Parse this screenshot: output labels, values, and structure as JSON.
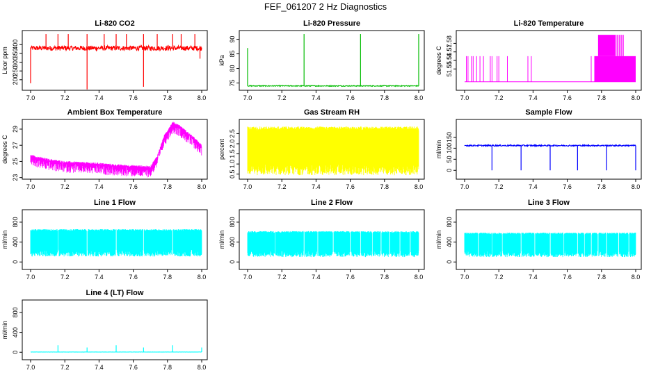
{
  "figure": {
    "title": "FEF_061207  2 Hz Diagnostics"
  },
  "chart_data": [
    {
      "type": "line",
      "title": "Li-820 CO2",
      "xlabel": "",
      "ylabel": "Licor ppm",
      "xlim": [
        7.0,
        8.0
      ],
      "ylim": [
        140,
        480
      ],
      "xticks": [
        "7.0",
        "7.2",
        "7.4",
        "7.6",
        "7.8",
        "8.0"
      ],
      "yticks": [
        "200",
        "250",
        "300",
        "350",
        "400"
      ],
      "color": "#ff0000",
      "series": [
        {
          "baseline": 380,
          "noise": 14,
          "events": [
            [
              7.0,
              180
            ],
            [
              7.09,
              460
            ],
            [
              7.16,
              460
            ],
            [
              7.22,
              460
            ],
            [
              7.33,
              145
            ],
            [
              7.33,
              460
            ],
            [
              7.43,
              460
            ],
            [
              7.5,
              460
            ],
            [
              7.56,
              460
            ],
            [
              7.66,
              160
            ],
            [
              7.66,
              460
            ],
            [
              7.74,
              460
            ],
            [
              7.83,
              460
            ],
            [
              7.88,
              460
            ],
            [
              7.96,
              460
            ],
            [
              7.99,
              320
            ]
          ]
        }
      ]
    },
    {
      "type": "line",
      "title": "Li-820 Pressure",
      "xlabel": "",
      "ylabel": "kPa",
      "xlim": [
        7.0,
        8.0
      ],
      "ylim": [
        72.5,
        93
      ],
      "xticks": [
        "7.0",
        "7.2",
        "7.4",
        "7.6",
        "7.8",
        "8.0"
      ],
      "yticks": [
        "75",
        "80",
        "85",
        "90"
      ],
      "color": "#00bb00",
      "series": [
        {
          "baseline": 74.0,
          "noise": 0.15,
          "events": [
            [
              7.0,
              87
            ],
            [
              7.33,
              91.8
            ],
            [
              7.66,
              91.8
            ],
            [
              8.0,
              91.8
            ]
          ]
        }
      ]
    },
    {
      "type": "line",
      "title": "Li-820 Temperature",
      "xlabel": "",
      "ylabel": "degrees C",
      "xlim": [
        7.0,
        8.0
      ],
      "ylim": [
        51.525,
        51.595
      ],
      "xticks": [
        "7.0",
        "7.2",
        "7.4",
        "7.6",
        "7.8",
        "8.0"
      ],
      "yticks": [
        "51.55",
        "51.56",
        "51.57",
        "51.58"
      ],
      "color": "#ff00ff",
      "series": [
        {
          "low": 51.535,
          "mid": 51.565,
          "high": 51.59,
          "jumps": [
            7.01,
            7.02,
            7.04,
            7.05,
            7.07,
            7.09,
            7.11,
            7.15,
            7.16,
            7.19,
            7.2,
            7.25,
            7.37,
            7.39,
            7.74,
            7.76
          ],
          "mid_band": [
            7.76,
            8.0
          ],
          "high_band": [
            7.78,
            7.88
          ]
        }
      ]
    },
    {
      "type": "line",
      "title": "Ambient Box Temperature",
      "xlabel": "",
      "ylabel": "degrees C",
      "xlim": [
        7.0,
        8.0
      ],
      "ylim": [
        22.8,
        30.2
      ],
      "xticks": [
        "7.0",
        "7.2",
        "7.4",
        "7.6",
        "7.8",
        "8.0"
      ],
      "yticks": [
        "23",
        "25",
        "27",
        "29"
      ],
      "color": "#ff00ff",
      "series": [
        {
          "points": [
            [
              7.0,
              25.6
            ],
            [
              7.1,
              25.1
            ],
            [
              7.2,
              24.8
            ],
            [
              7.3,
              24.7
            ],
            [
              7.4,
              24.6
            ],
            [
              7.5,
              24.4
            ],
            [
              7.6,
              24.3
            ],
            [
              7.7,
              24.2
            ],
            [
              7.74,
              25.5
            ],
            [
              7.78,
              28.0
            ],
            [
              7.83,
              29.7
            ],
            [
              7.87,
              29.3
            ],
            [
              7.92,
              28.4
            ],
            [
              7.96,
              27.7
            ],
            [
              8.0,
              26.8
            ]
          ],
          "spread": 1.2
        }
      ]
    },
    {
      "type": "line",
      "title": "Gas Stream RH",
      "xlabel": "",
      "ylabel": "percent",
      "xlim": [
        7.0,
        8.0
      ],
      "ylim": [
        0.25,
        3.2
      ],
      "xticks": [
        "7.0",
        "7.2",
        "7.4",
        "7.6",
        "7.8",
        "8.0"
      ],
      "yticks": [
        "0.5",
        "1.0",
        "1.5",
        "2.0",
        "2.5"
      ],
      "color": "#ffff00",
      "series": [
        {
          "upper": 2.85,
          "lower": 0.45
        }
      ]
    },
    {
      "type": "line",
      "title": "Sample Flow",
      "xlabel": "",
      "ylabel": "ml/min",
      "xlim": [
        7.0,
        8.0
      ],
      "ylim": [
        -40,
        230
      ],
      "xticks": [
        "7.0",
        "7.2",
        "7.4",
        "7.6",
        "7.8",
        "8.0"
      ],
      "yticks": [
        "0",
        "50",
        "100",
        "150"
      ],
      "color": "#0000ff",
      "series": [
        {
          "baseline": 112,
          "noise": 3,
          "events": [
            [
              7.16,
              0
            ],
            [
              7.33,
              0
            ],
            [
              7.5,
              0
            ],
            [
              7.66,
              0
            ],
            [
              7.83,
              0
            ],
            [
              8.0,
              0
            ]
          ]
        }
      ]
    },
    {
      "type": "line",
      "title": "Line 1 Flow",
      "xlabel": "",
      "ylabel": "ml/min",
      "xlim": [
        7.0,
        8.0
      ],
      "ylim": [
        -150,
        1050
      ],
      "xticks": [
        "7.0",
        "7.2",
        "7.4",
        "7.6",
        "7.8",
        "8.0"
      ],
      "yticks": [
        "0",
        "400",
        "800"
      ],
      "color": "#00ffff",
      "series": [
        {
          "upper": 660,
          "lower": 110,
          "gaps": [
            7.16,
            7.33,
            7.5,
            7.66,
            7.83
          ]
        }
      ]
    },
    {
      "type": "line",
      "title": "Line 2 Flow",
      "xlabel": "",
      "ylabel": "ml/min",
      "xlim": [
        7.0,
        8.0
      ],
      "ylim": [
        -150,
        1050
      ],
      "xticks": [
        "7.0",
        "7.2",
        "7.4",
        "7.6",
        "7.8",
        "8.0"
      ],
      "yticks": [
        "0",
        "400",
        "800"
      ],
      "color": "#00ffff",
      "series": [
        {
          "upper": 620,
          "lower": 100,
          "gaps": [
            7.16,
            7.33,
            7.41,
            7.5,
            7.6,
            7.66,
            7.73,
            7.78,
            7.83,
            7.89,
            7.95
          ]
        }
      ]
    },
    {
      "type": "line",
      "title": "Line 3 Flow",
      "xlabel": "",
      "ylabel": "ml/min",
      "xlim": [
        7.0,
        8.0
      ],
      "ylim": [
        -150,
        1050
      ],
      "xticks": [
        "7.0",
        "7.2",
        "7.4",
        "7.6",
        "7.8",
        "8.0"
      ],
      "yticks": [
        "0",
        "400",
        "800"
      ],
      "color": "#00ffff",
      "series": [
        {
          "upper": 590,
          "lower": 100,
          "gaps": [
            7.08,
            7.16,
            7.22,
            7.33,
            7.41,
            7.5,
            7.58,
            7.66,
            7.7,
            7.74,
            7.78,
            7.83,
            7.9,
            7.96
          ]
        }
      ]
    },
    {
      "type": "line",
      "title": "Line 4 (LT) Flow",
      "xlabel": "",
      "ylabel": "ml/min",
      "xlim": [
        7.0,
        8.0
      ],
      "ylim": [
        -150,
        1050
      ],
      "xticks": [
        "7.0",
        "7.2",
        "7.4",
        "7.6",
        "7.8",
        "8.0"
      ],
      "yticks": [
        "0",
        "400",
        "800"
      ],
      "color": "#00ffff",
      "series": [
        {
          "baseline": 5,
          "noise": 2,
          "events": [
            [
              7.16,
              140
            ],
            [
              7.33,
              95
            ],
            [
              7.5,
              140
            ],
            [
              7.66,
              95
            ],
            [
              7.83,
              140
            ],
            [
              8.0,
              95
            ]
          ]
        }
      ]
    }
  ]
}
